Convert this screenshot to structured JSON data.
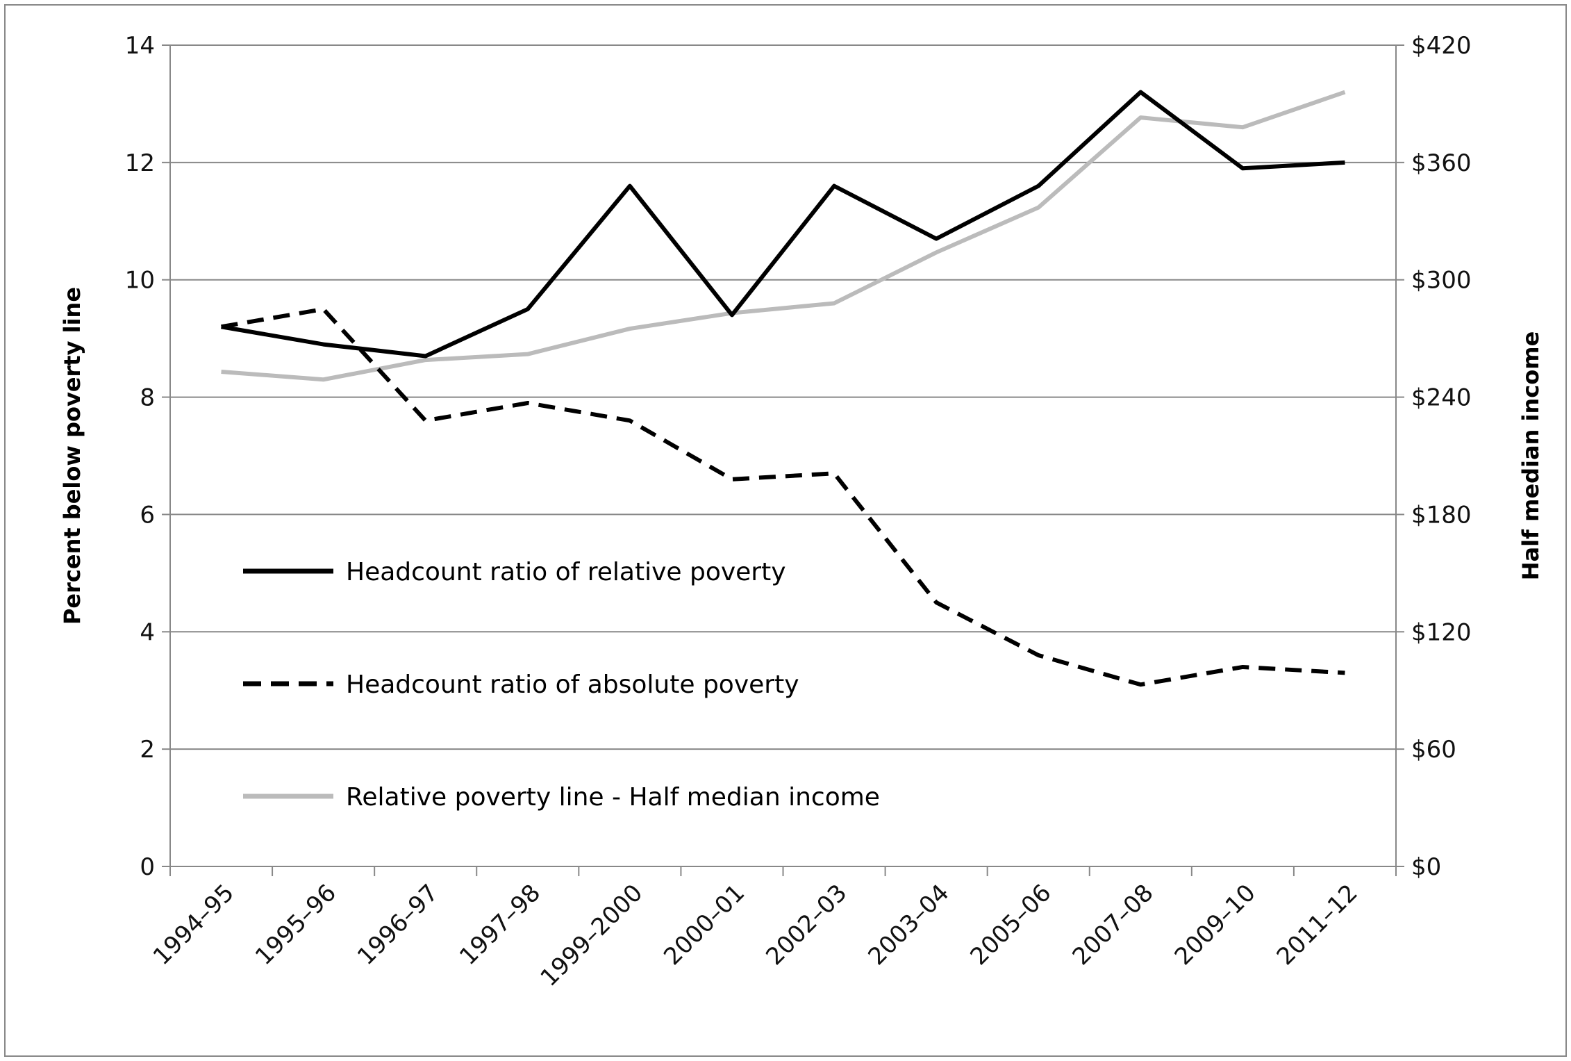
{
  "chart_data": {
    "type": "line",
    "title": "",
    "xlabel": "",
    "ylabel": "Percent below poverty line",
    "y2label": "Half median income",
    "ylim": [
      0,
      14
    ],
    "y2lim": [
      0,
      420
    ],
    "yticks": [
      "0",
      "2",
      "4",
      "6",
      "8",
      "10",
      "12",
      "14"
    ],
    "y2ticks": [
      "$0",
      "$60",
      "$120",
      "$180",
      "$240",
      "$300",
      "$360",
      "$420"
    ],
    "grid": true,
    "legend_position": "center-left",
    "categories": [
      "1994–95",
      "1995–96",
      "1996–97",
      "1997–98",
      "1999–2000",
      "2000–01",
      "2002–03",
      "2003–04",
      "2005–06",
      "2007–08",
      "2009–10",
      "2011–12"
    ],
    "series": [
      {
        "name": "Headcount ratio of relative poverty",
        "axis": "left",
        "style": "solid",
        "color": "#000000",
        "values": [
          9.2,
          8.9,
          8.7,
          9.5,
          11.6,
          9.4,
          11.6,
          10.7,
          11.6,
          13.2,
          11.9,
          12.0
        ]
      },
      {
        "name": "Headcount ratio of absolute poverty",
        "axis": "left",
        "style": "dashed",
        "color": "#000000",
        "values": [
          9.2,
          9.5,
          7.6,
          7.9,
          7.6,
          6.6,
          6.7,
          4.5,
          3.6,
          3.1,
          3.4,
          3.3
        ]
      },
      {
        "name": "Relative poverty line - Half median income",
        "axis": "right",
        "style": "solid",
        "color": "#bbbbbb",
        "values": [
          253,
          249,
          259,
          262,
          275,
          283,
          288,
          314,
          337,
          383,
          378,
          396
        ]
      }
    ]
  }
}
